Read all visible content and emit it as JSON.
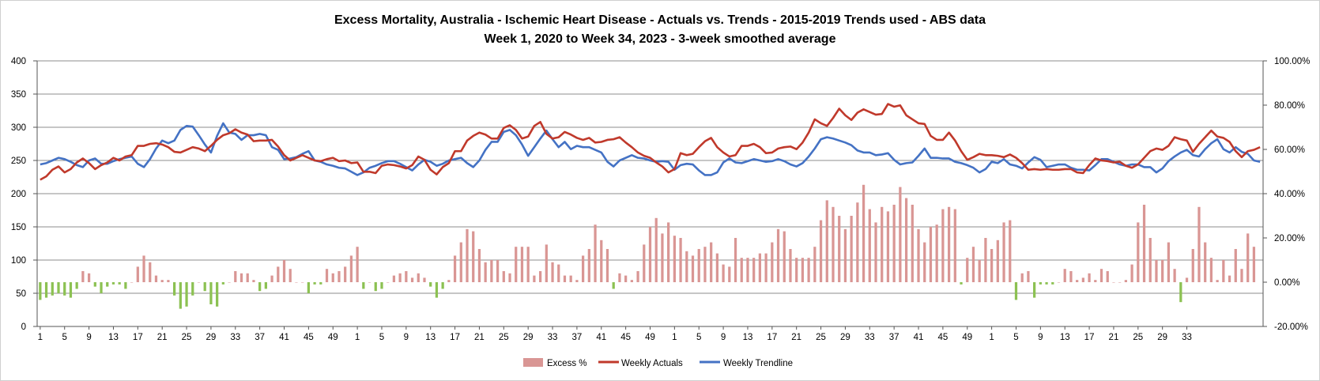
{
  "chart_data": {
    "type": "bar+line",
    "title": "Excess Mortality, Australia - Ischemic Heart Disease - Actuals vs. Trends - 2015-2019 Trends used - ABS data",
    "subtitle": "Week 1, 2020 to Week 34, 2023 - 3-week smoothed average",
    "y_left": {
      "min": 0,
      "max": 400,
      "ticks": [
        "0",
        "50",
        "100",
        "150",
        "200",
        "250",
        "300",
        "350",
        "400"
      ]
    },
    "y_right": {
      "min": -20,
      "max": 100,
      "ticks": [
        "-20.00%",
        "0.00%",
        "20.00%",
        "40.00%",
        "60.00%",
        "80.00%",
        "100.00%"
      ]
    },
    "x_tick_labels": [
      "1",
      "5",
      "9",
      "13",
      "17",
      "21",
      "25",
      "29",
      "33",
      "37",
      "41",
      "45",
      "49",
      "1",
      "5",
      "9",
      "13",
      "17",
      "21",
      "25",
      "29",
      "33",
      "37",
      "41",
      "45",
      "49",
      "1",
      "5",
      "9",
      "13",
      "17",
      "21",
      "25",
      "29",
      "33",
      "37",
      "41",
      "45",
      "49",
      "1",
      "5",
      "9",
      "13",
      "17",
      "21",
      "25",
      "29",
      "33"
    ],
    "legend": {
      "position": "bottom",
      "items": [
        "Excess %",
        "Weekly Actuals",
        "Weekly Trendline"
      ]
    },
    "colors": {
      "positive_bar": "#d99694",
      "negative_bar": "#8cc152",
      "actuals": "#c0392b",
      "trendline": "#4472c4",
      "grid": "#8c8c8c"
    },
    "series": [
      {
        "name": "Excess %",
        "axis": "right",
        "values": [
          -8,
          -7,
          -6,
          -5,
          -6,
          -7,
          -3,
          5,
          4,
          -2,
          -5,
          -2,
          -1,
          -1,
          -3,
          0,
          7,
          12,
          9,
          3,
          1,
          1,
          -6,
          -12,
          -11,
          -6,
          0,
          -4,
          -10,
          -11,
          -1,
          0,
          5,
          4,
          4,
          1,
          -4,
          -3,
          3,
          7,
          10,
          6,
          0,
          0,
          -5,
          -1,
          -1,
          6,
          4,
          5,
          7,
          12,
          16,
          -3,
          0,
          -4,
          -3,
          0,
          3,
          4,
          5,
          2,
          4,
          2,
          -2,
          -7,
          -3,
          1,
          12,
          18,
          24,
          23,
          15,
          9,
          10,
          10,
          5,
          4,
          16,
          16,
          16,
          3,
          5,
          17,
          9,
          8,
          3,
          3,
          1,
          12,
          15,
          26,
          19,
          15,
          -3,
          4,
          3,
          1,
          5,
          17,
          25,
          29,
          22,
          27,
          21,
          20,
          14,
          12,
          15,
          16,
          18,
          13,
          8,
          7,
          20,
          11,
          11,
          11,
          13,
          13,
          18,
          24,
          23,
          15,
          11,
          11,
          11,
          16,
          28,
          37,
          34,
          30,
          24,
          30,
          36,
          44,
          33,
          27,
          34,
          32,
          35,
          43,
          38,
          35,
          24,
          18,
          25,
          26,
          33,
          34,
          33,
          -1,
          11,
          16,
          10,
          20,
          15,
          19,
          27,
          28,
          -8,
          4,
          5,
          -7,
          -1,
          -1,
          -1,
          0,
          6,
          5,
          1,
          2,
          4,
          1,
          6,
          5,
          0,
          0,
          1,
          8,
          27,
          35,
          20,
          10,
          10,
          18,
          6,
          -9,
          2,
          15,
          34,
          18,
          11,
          1,
          10,
          3,
          15,
          6,
          22,
          16
        ],
        "first_value_index_note": "values span Week 1 2020 through Week 34 2023"
      },
      {
        "name": "Weekly Actuals",
        "axis": "left",
        "values": [
          221,
          226,
          236,
          241,
          232,
          237,
          247,
          253,
          246,
          237,
          243,
          247,
          254,
          250,
          256,
          258,
          272,
          272,
          275,
          276,
          274,
          270,
          263,
          262,
          266,
          270,
          268,
          264,
          272,
          281,
          288,
          291,
          297,
          292,
          289,
          279,
          280,
          280,
          281,
          271,
          258,
          250,
          254,
          258,
          254,
          250,
          249,
          252,
          254,
          249,
          250,
          246,
          247,
          233,
          233,
          231,
          242,
          244,
          243,
          241,
          238,
          243,
          256,
          251,
          236,
          229,
          240,
          246,
          264,
          264,
          280,
          287,
          292,
          289,
          283,
          283,
          299,
          303,
          296,
          283,
          286,
          302,
          308,
          290,
          283,
          285,
          293,
          289,
          284,
          281,
          284,
          277,
          278,
          281,
          282,
          285,
          277,
          270,
          262,
          257,
          254,
          247,
          241,
          232,
          237,
          261,
          258,
          260,
          270,
          279,
          284,
          270,
          262,
          256,
          258,
          272,
          272,
          275,
          270,
          261,
          262,
          268,
          270,
          271,
          267,
          277,
          292,
          312,
          306,
          302,
          314,
          328,
          318,
          311,
          322,
          327,
          323,
          319,
          320,
          335,
          331,
          333,
          318,
          312,
          306,
          305,
          287,
          281,
          281,
          292,
          280,
          264,
          251,
          255,
          260,
          258,
          258,
          257,
          255,
          259,
          254,
          246,
          236,
          237,
          236,
          237,
          236,
          236,
          237,
          237,
          232,
          231,
          243,
          253,
          250,
          249,
          247,
          248,
          242,
          239,
          244,
          254,
          264,
          268,
          266,
          272,
          285,
          282,
          280,
          263,
          275,
          285,
          295,
          286,
          284,
          278,
          264,
          255,
          264,
          266,
          270
        ]
      },
      {
        "name": "Weekly Trendline",
        "axis": "left",
        "values": [
          244,
          246,
          250,
          254,
          252,
          248,
          243,
          240,
          250,
          253,
          245,
          245,
          249,
          252,
          254,
          256,
          245,
          240,
          252,
          268,
          280,
          276,
          280,
          296,
          302,
          301,
          288,
          274,
          262,
          287,
          306,
          292,
          290,
          281,
          288,
          288,
          290,
          288,
          270,
          266,
          252,
          253,
          255,
          260,
          264,
          250,
          248,
          244,
          242,
          239,
          238,
          233,
          228,
          232,
          239,
          242,
          246,
          249,
          249,
          245,
          240,
          235,
          244,
          251,
          248,
          242,
          245,
          250,
          252,
          254,
          246,
          240,
          250,
          266,
          278,
          278,
          293,
          296,
          288,
          274,
          257,
          270,
          283,
          295,
          282,
          270,
          278,
          267,
          272,
          270,
          270,
          266,
          262,
          248,
          241,
          250,
          254,
          258,
          254,
          253,
          250,
          248,
          249,
          248,
          236,
          243,
          245,
          244,
          235,
          228,
          228,
          232,
          247,
          253,
          247,
          246,
          249,
          252,
          250,
          248,
          249,
          252,
          249,
          244,
          241,
          246,
          256,
          268,
          282,
          285,
          283,
          280,
          277,
          273,
          265,
          262,
          262,
          258,
          259,
          261,
          251,
          244,
          246,
          247,
          257,
          268,
          254,
          254,
          253,
          253,
          248,
          246,
          243,
          239,
          232,
          237,
          248,
          246,
          252,
          244,
          242,
          238,
          247,
          255,
          251,
          240,
          242,
          244,
          244,
          239,
          236,
          236,
          235,
          243,
          252,
          252,
          248,
          244,
          242,
          244,
          244,
          240,
          240,
          232,
          238,
          249,
          256,
          262,
          266,
          258,
          256,
          267,
          276,
          282,
          267,
          262,
          270,
          263,
          260,
          250,
          248
        ]
      }
    ]
  }
}
